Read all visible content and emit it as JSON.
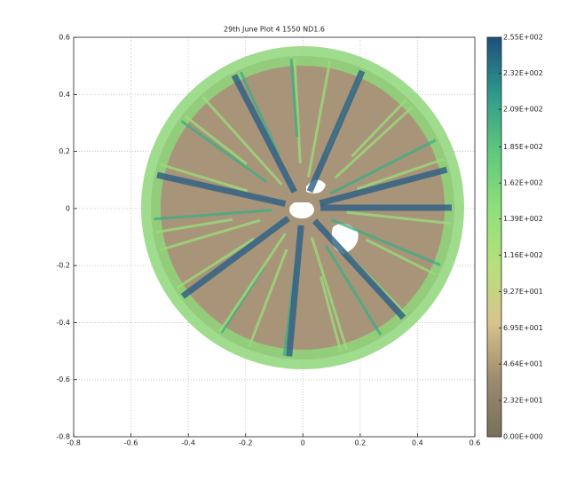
{
  "chart_data": {
    "type": "image",
    "title": "29th June Plot 4 1550 ND1.6",
    "xlim": [
      -0.8,
      0.6
    ],
    "xticks": [
      -0.8,
      -0.6,
      -0.4,
      -0.2,
      0,
      0.2,
      0.4,
      0.6
    ],
    "ylim": [
      -0.8,
      0.6
    ],
    "yticks": [
      -0.8,
      -0.6,
      -0.4,
      -0.2,
      0,
      0.2,
      0.4,
      0.6
    ],
    "grid": true,
    "clim": [
      0,
      255
    ],
    "cticks": [
      {
        "value": 0,
        "label": "0.00E+000"
      },
      {
        "value": 23.2,
        "label": "2.32E+001"
      },
      {
        "value": 46.4,
        "label": "4.64E+001"
      },
      {
        "value": 69.5,
        "label": "6.95E+001"
      },
      {
        "value": 92.7,
        "label": "9.27E+001"
      },
      {
        "value": 116,
        "label": "1.16E+002"
      },
      {
        "value": 139,
        "label": "1.39E+002"
      },
      {
        "value": 162,
        "label": "1.62E+002"
      },
      {
        "value": 185,
        "label": "1.85E+002"
      },
      {
        "value": 209,
        "label": "2.09E+002"
      },
      {
        "value": 232,
        "label": "2.32E+002"
      },
      {
        "value": 255,
        "label": "2.55E+002"
      }
    ],
    "colormap": [
      "#77705c",
      "#9c8a6e",
      "#d8c48c",
      "#b8e07a",
      "#8ee07a",
      "#5ec87c",
      "#2f9a8a",
      "#1d4f7c"
    ]
  }
}
